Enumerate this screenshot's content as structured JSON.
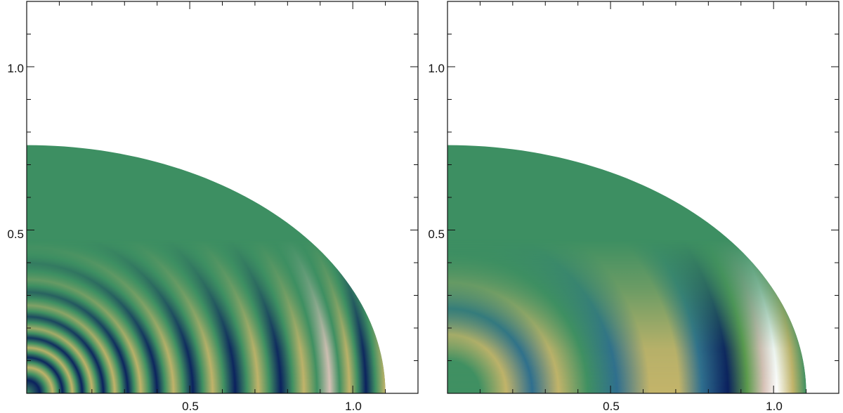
{
  "chart_data": [
    {
      "type": "heatmap",
      "title": "",
      "xlabel": "",
      "ylabel": "",
      "xlim": [
        0,
        1.2
      ],
      "ylim": [
        0,
        1.2
      ],
      "xticks": [
        {
          "value": 0.5,
          "label": "0.5"
        },
        {
          "value": 1.0,
          "label": "1.0"
        }
      ],
      "yticks": [
        {
          "value": 0.5,
          "label": "0.5"
        },
        {
          "value": 1.0,
          "label": "1.0"
        }
      ],
      "colormap": "gist_earth",
      "colormap_colors": [
        "#0a1f5e",
        "#2f6e8f",
        "#409062",
        "#5d9b4c",
        "#c4b46a",
        "#d9c2b8",
        "#ffffff"
      ],
      "background_value_color": "#3d8f62",
      "domain": "quarter ellipse, x-semi-axis 1.10, y-semi-axis 0.76",
      "pattern": "concentric oscillating rings near the x axis; many fine fringes close to the origin, strongest dark trough at x ≈ 1.04, bright crest at x ≈ 0.93",
      "grid": false,
      "legend": "none"
    },
    {
      "type": "heatmap",
      "title": "",
      "xlabel": "",
      "ylabel": "",
      "xlim": [
        0,
        1.2
      ],
      "ylim": [
        0,
        1.2
      ],
      "xticks": [
        {
          "value": 0.5,
          "label": "0.5"
        },
        {
          "value": 1.0,
          "label": "1.0"
        }
      ],
      "yticks": [
        {
          "value": 0.5,
          "label": "0.5"
        },
        {
          "value": 1.0,
          "label": "1.0"
        }
      ],
      "colormap": "gist_earth",
      "colormap_colors": [
        "#0a1f5e",
        "#2f6e8f",
        "#409062",
        "#5d9b4c",
        "#c4b46a",
        "#d9c2b8",
        "#ffffff"
      ],
      "background_value_color": "#3d8f62",
      "domain": "quarter ellipse, x-semi-axis 1.10, y-semi-axis 0.76",
      "pattern": "broader concentric rings near the x axis; dark trough at x ≈ 0.85, white peak at x ≈ 1.0 near the axis",
      "grid": false,
      "legend": "none"
    }
  ]
}
